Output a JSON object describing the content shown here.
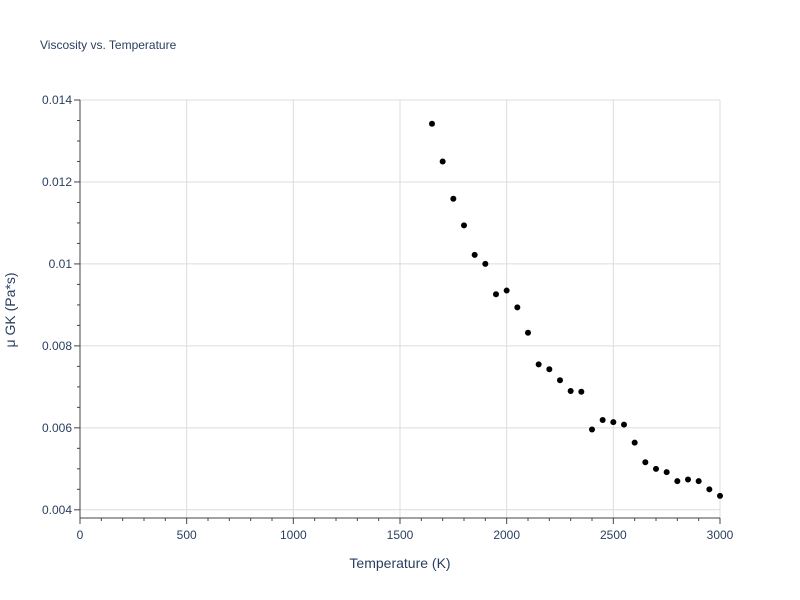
{
  "chart_data": {
    "type": "scatter",
    "title": "Viscosity vs. Temperature",
    "xlabel": "Temperature (K)",
    "ylabel": "μ GK (Pa*s)",
    "xlim": [
      0,
      3000
    ],
    "ylim": [
      0.0038,
      0.014
    ],
    "xticks": [
      {
        "value": 0,
        "label": "0"
      },
      {
        "value": 500,
        "label": "500"
      },
      {
        "value": 1000,
        "label": "1000"
      },
      {
        "value": 1500,
        "label": "1500"
      },
      {
        "value": 2000,
        "label": "2000"
      },
      {
        "value": 2500,
        "label": "2500"
      },
      {
        "value": 3000,
        "label": "3000"
      }
    ],
    "yticks": [
      {
        "value": 0.004,
        "label": "0.004"
      },
      {
        "value": 0.006,
        "label": "0.006"
      },
      {
        "value": 0.008,
        "label": "0.008"
      },
      {
        "value": 0.01,
        "label": "0.01"
      },
      {
        "value": 0.012,
        "label": "0.012"
      },
      {
        "value": 0.014,
        "label": "0.014"
      }
    ],
    "grid": true,
    "marker_color": "#000000",
    "points": [
      {
        "x": 1650,
        "y": 0.01342
      },
      {
        "x": 1700,
        "y": 0.0125
      },
      {
        "x": 1750,
        "y": 0.01159
      },
      {
        "x": 1800,
        "y": 0.01094
      },
      {
        "x": 1850,
        "y": 0.01022
      },
      {
        "x": 1900,
        "y": 0.01
      },
      {
        "x": 1950,
        "y": 0.00926
      },
      {
        "x": 2000,
        "y": 0.00935
      },
      {
        "x": 2050,
        "y": 0.00894
      },
      {
        "x": 2100,
        "y": 0.00832
      },
      {
        "x": 2150,
        "y": 0.00755
      },
      {
        "x": 2200,
        "y": 0.00743
      },
      {
        "x": 2250,
        "y": 0.00716
      },
      {
        "x": 2300,
        "y": 0.0069
      },
      {
        "x": 2350,
        "y": 0.00688
      },
      {
        "x": 2400,
        "y": 0.00596
      },
      {
        "x": 2450,
        "y": 0.00619
      },
      {
        "x": 2500,
        "y": 0.00614
      },
      {
        "x": 2550,
        "y": 0.00608
      },
      {
        "x": 2600,
        "y": 0.00564
      },
      {
        "x": 2650,
        "y": 0.00516
      },
      {
        "x": 2700,
        "y": 0.005
      },
      {
        "x": 2750,
        "y": 0.00492
      },
      {
        "x": 2800,
        "y": 0.0047
      },
      {
        "x": 2850,
        "y": 0.00474
      },
      {
        "x": 2900,
        "y": 0.0047
      },
      {
        "x": 2950,
        "y": 0.0045
      },
      {
        "x": 3000,
        "y": 0.00434
      }
    ]
  }
}
